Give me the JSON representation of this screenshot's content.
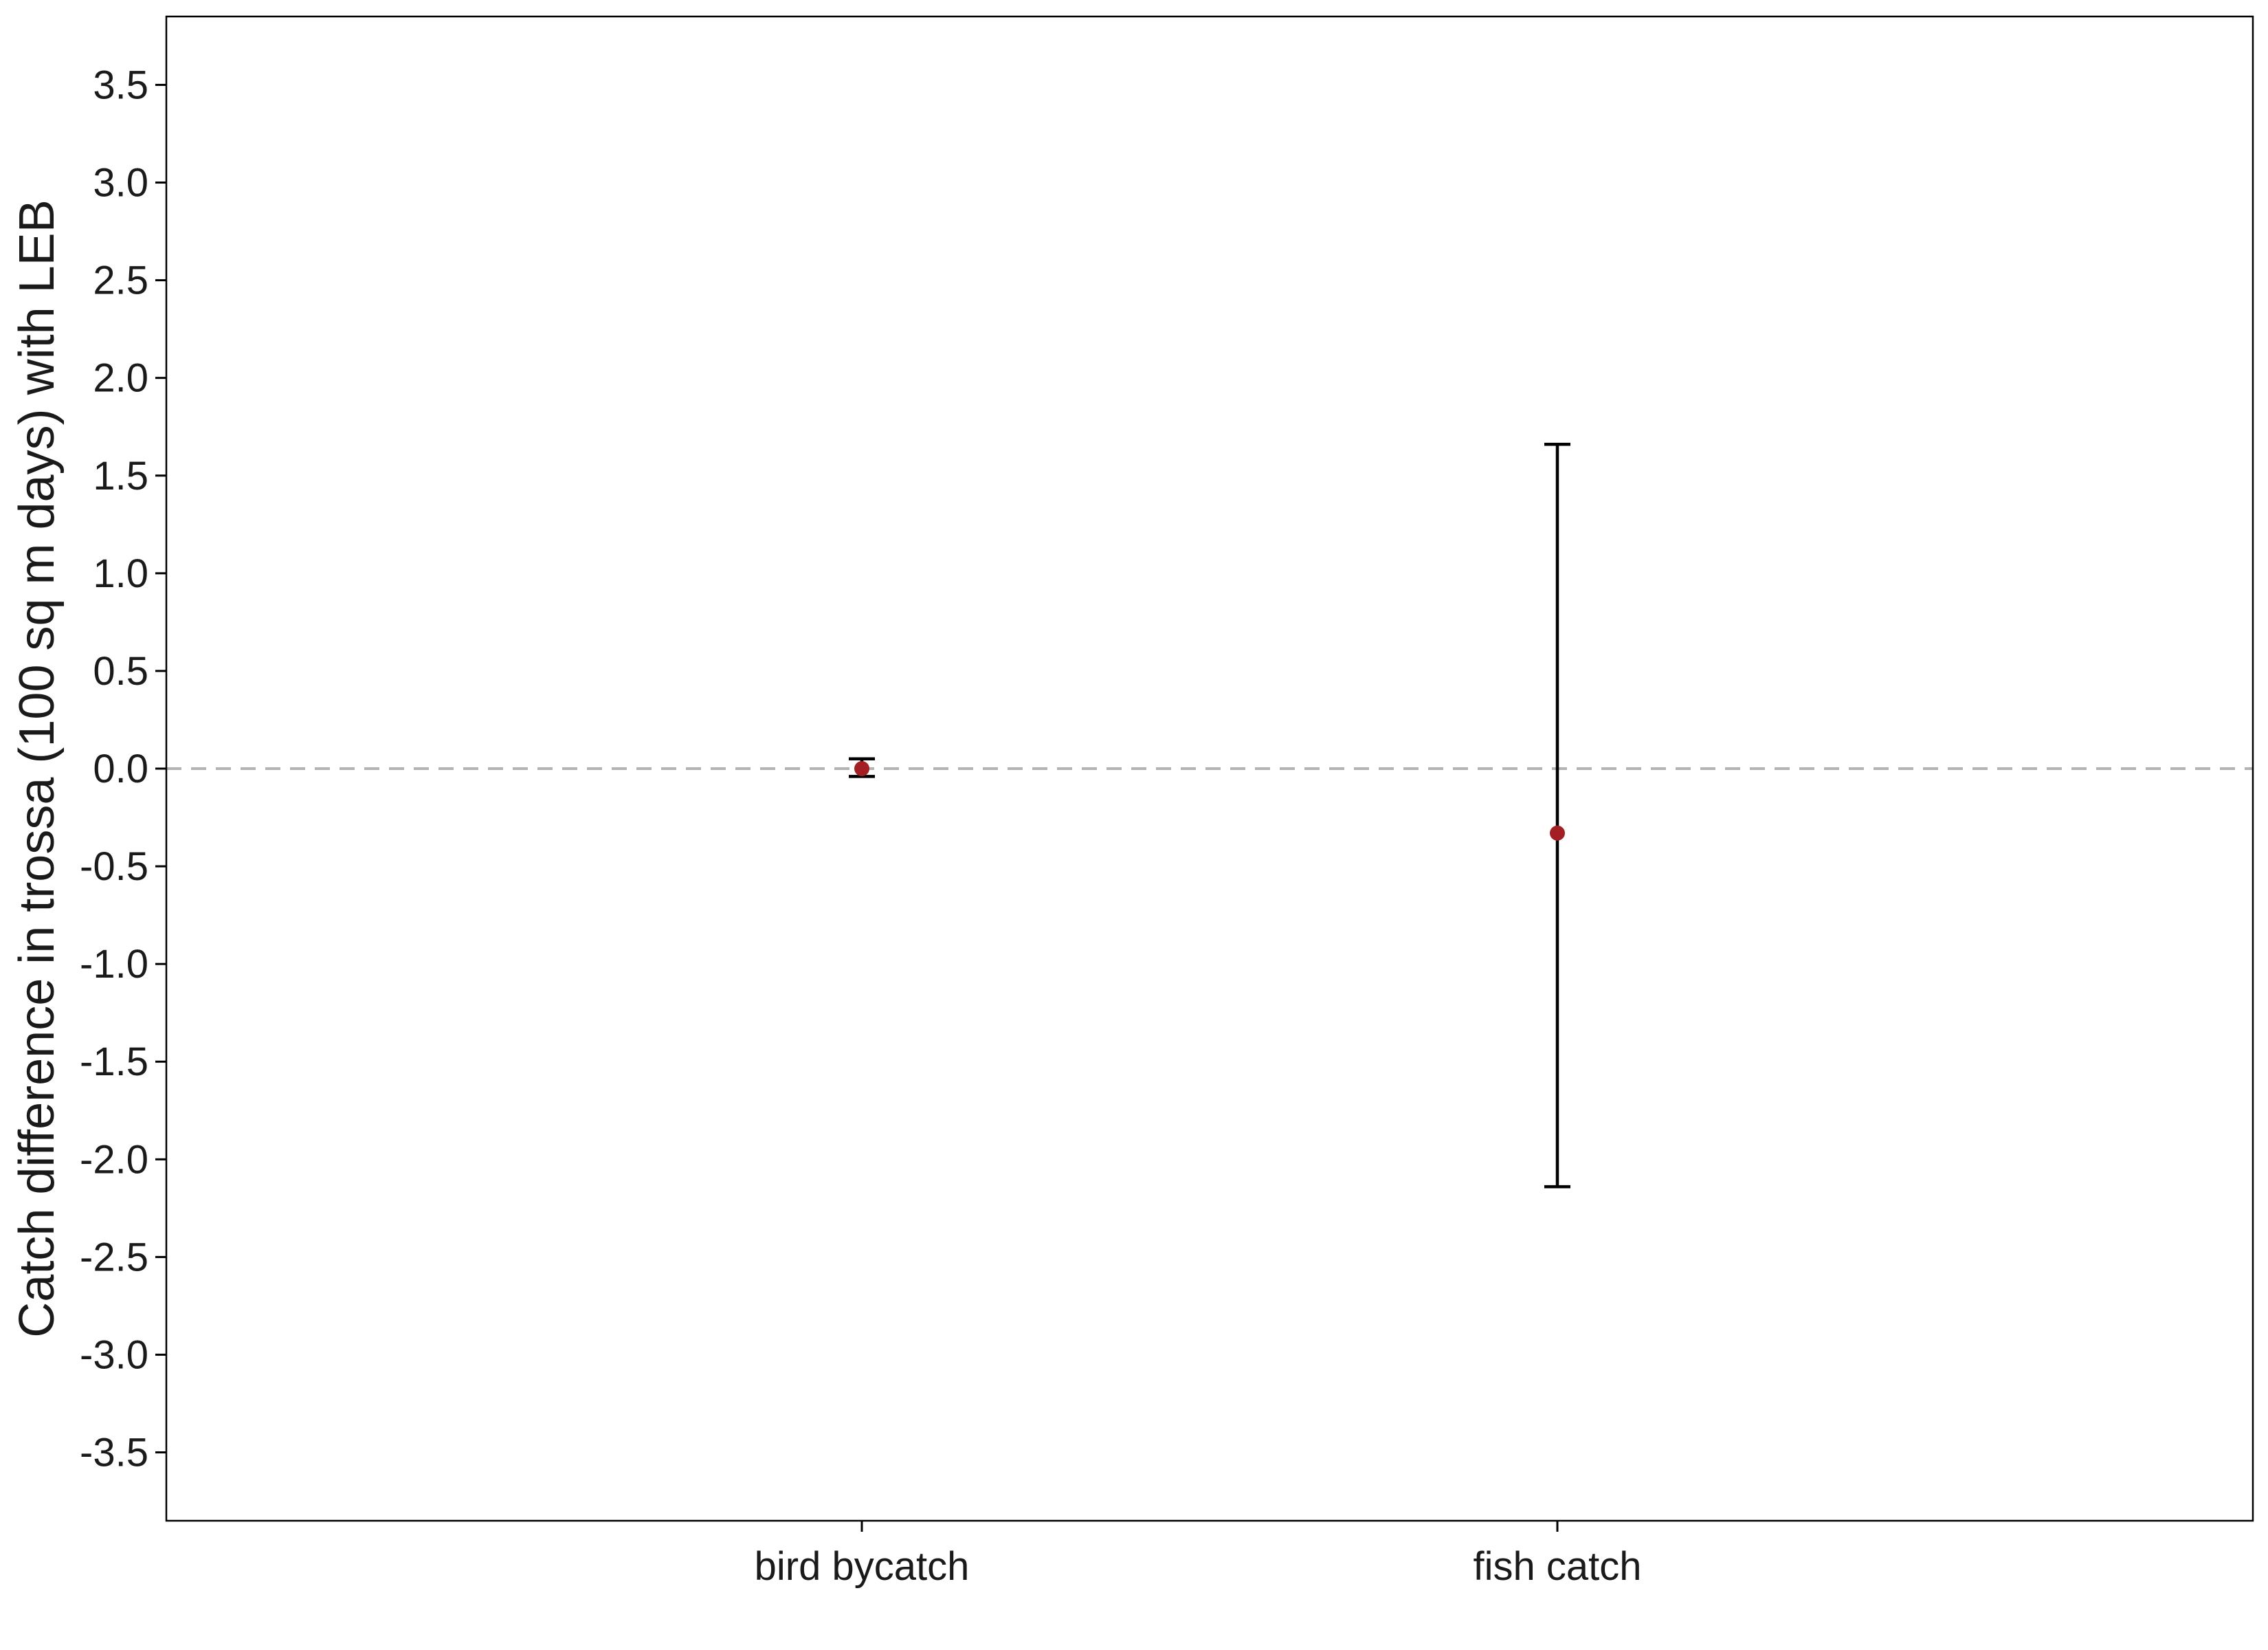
{
  "chart_data": {
    "type": "errorbar",
    "title": "",
    "xlabel": "",
    "ylabel": "Catch difference in trossa (100 sq m days) with LEB",
    "categories": [
      "bird bycatch",
      "fish catch"
    ],
    "points": [
      {
        "category": "bird bycatch",
        "estimate": 0.0,
        "lower": -0.04,
        "upper": 0.05
      },
      {
        "category": "fish catch",
        "estimate": -0.33,
        "lower": -2.14,
        "upper": 1.66
      }
    ],
    "reference_line": {
      "y": 0,
      "style": "dashed",
      "color": "#b3b3b3"
    },
    "ylim": [
      -3.85,
      3.85
    ],
    "yticks": [
      -3.5,
      -3.0,
      -2.5,
      -2.0,
      -1.5,
      -1.0,
      -0.5,
      0.0,
      0.5,
      1.0,
      1.5,
      2.0,
      2.5,
      3.0,
      3.5
    ],
    "ytick_labels": [
      "-3.5",
      "-3.0",
      "-2.5",
      "-2.0",
      "-1.5",
      "-1.0",
      "-0.5",
      "0.0",
      "0.5",
      "1.0",
      "1.5",
      "2.0",
      "2.5",
      "3.0",
      "3.5"
    ],
    "grid": false,
    "legend": "none",
    "colors": {
      "point": "#a31f24",
      "errorbar": "#000000",
      "axis": "#000000",
      "reference": "#b3b3b3"
    }
  }
}
